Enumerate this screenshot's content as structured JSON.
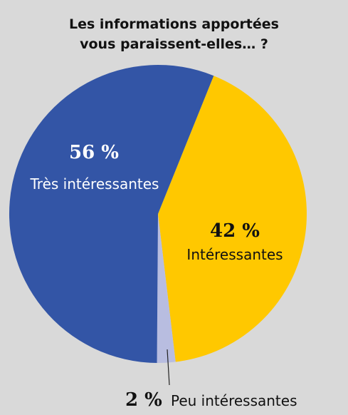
{
  "chart_data": {
    "type": "pie",
    "title": [
      "Les informations apportées",
      "vous paraissent-elles… ?"
    ],
    "slices": [
      {
        "label": "Intéressantes",
        "value": 42,
        "value_label": "42 %",
        "color": "#ffc800"
      },
      {
        "label": "Peu intéressantes",
        "value": 2,
        "value_label": "2 %",
        "color": "#b8bde0"
      },
      {
        "label": "Très intéressantes",
        "value": 56,
        "value_label": "56 %",
        "color": "#3355a6"
      }
    ]
  }
}
